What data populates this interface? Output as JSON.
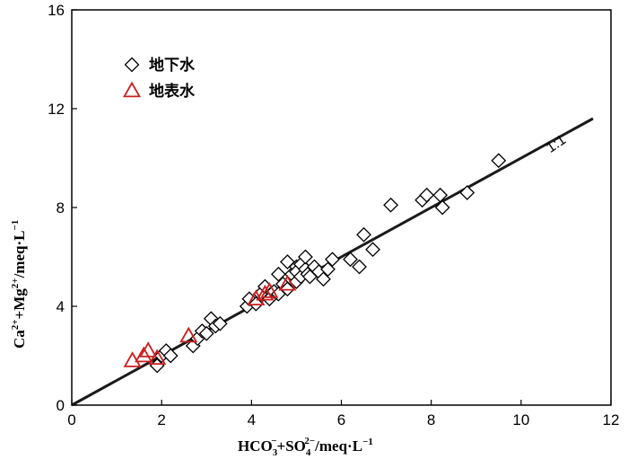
{
  "chart_data": {
    "type": "scatter",
    "xlabel": "HCO3−+SO42−/meq·L−1",
    "ylabel": "Ca2++Mg2+/meq·L−1",
    "xlabel_parts": [
      "HCO",
      "3",
      "−",
      "+SO",
      "4",
      "2−",
      "/meq·L",
      "−1"
    ],
    "ylabel_parts": [
      "Ca",
      "2+",
      "+Mg",
      "2+",
      "/meq·L",
      "−1"
    ],
    "xlim": [
      0,
      12
    ],
    "ylim": [
      0,
      16
    ],
    "xticks": [
      "0",
      "2",
      "4",
      "6",
      "8",
      "10",
      "12"
    ],
    "yticks": [
      "0",
      "4",
      "8",
      "12",
      "16"
    ],
    "grid": false,
    "legend_position": "top-left",
    "reference_line": {
      "label": "1:1",
      "x": [
        0,
        11.6
      ],
      "y": [
        0,
        11.6
      ],
      "color": "#1a1a1a"
    },
    "series": [
      {
        "name": "地下水",
        "marker": "diamond",
        "color": "#000000",
        "points": [
          [
            1.9,
            1.6
          ],
          [
            2.0,
            2.0
          ],
          [
            2.1,
            2.2
          ],
          [
            2.2,
            2.0
          ],
          [
            2.7,
            2.4
          ],
          [
            2.8,
            2.7
          ],
          [
            2.9,
            3.0
          ],
          [
            3.0,
            2.9
          ],
          [
            3.1,
            3.5
          ],
          [
            3.2,
            3.2
          ],
          [
            3.3,
            3.3
          ],
          [
            3.9,
            4.0
          ],
          [
            3.95,
            4.3
          ],
          [
            4.1,
            4.1
          ],
          [
            4.2,
            4.5
          ],
          [
            4.3,
            4.8
          ],
          [
            4.4,
            4.3
          ],
          [
            4.5,
            4.6
          ],
          [
            4.6,
            4.5
          ],
          [
            4.6,
            5.3
          ],
          [
            4.7,
            4.9
          ],
          [
            4.8,
            5.8
          ],
          [
            4.8,
            4.7
          ],
          [
            4.9,
            5.3
          ],
          [
            5.0,
            5.6
          ],
          [
            5.0,
            5.0
          ],
          [
            5.0,
            5.4
          ],
          [
            5.1,
            5.2
          ],
          [
            5.1,
            5.7
          ],
          [
            5.2,
            5.5
          ],
          [
            5.2,
            6.0
          ],
          [
            5.25,
            5.3
          ],
          [
            5.3,
            5.2
          ],
          [
            5.4,
            5.6
          ],
          [
            5.5,
            5.4
          ],
          [
            5.6,
            5.1
          ],
          [
            5.7,
            5.5
          ],
          [
            5.8,
            5.9
          ],
          [
            6.2,
            5.9
          ],
          [
            6.4,
            5.6
          ],
          [
            6.5,
            6.9
          ],
          [
            6.7,
            6.3
          ],
          [
            7.1,
            8.1
          ],
          [
            7.8,
            8.3
          ],
          [
            7.9,
            8.5
          ],
          [
            8.2,
            8.5
          ],
          [
            8.25,
            8.0
          ],
          [
            8.8,
            8.6
          ],
          [
            9.5,
            9.9
          ]
        ]
      },
      {
        "name": "地表水",
        "marker": "triangle",
        "color": "#cc1f1f",
        "points": [
          [
            1.35,
            1.8
          ],
          [
            1.6,
            2.0
          ],
          [
            1.7,
            2.2
          ],
          [
            1.9,
            1.9
          ],
          [
            2.6,
            2.8
          ],
          [
            4.1,
            4.3
          ],
          [
            4.3,
            4.5
          ],
          [
            4.4,
            4.6
          ],
          [
            4.8,
            4.9
          ]
        ]
      }
    ]
  }
}
